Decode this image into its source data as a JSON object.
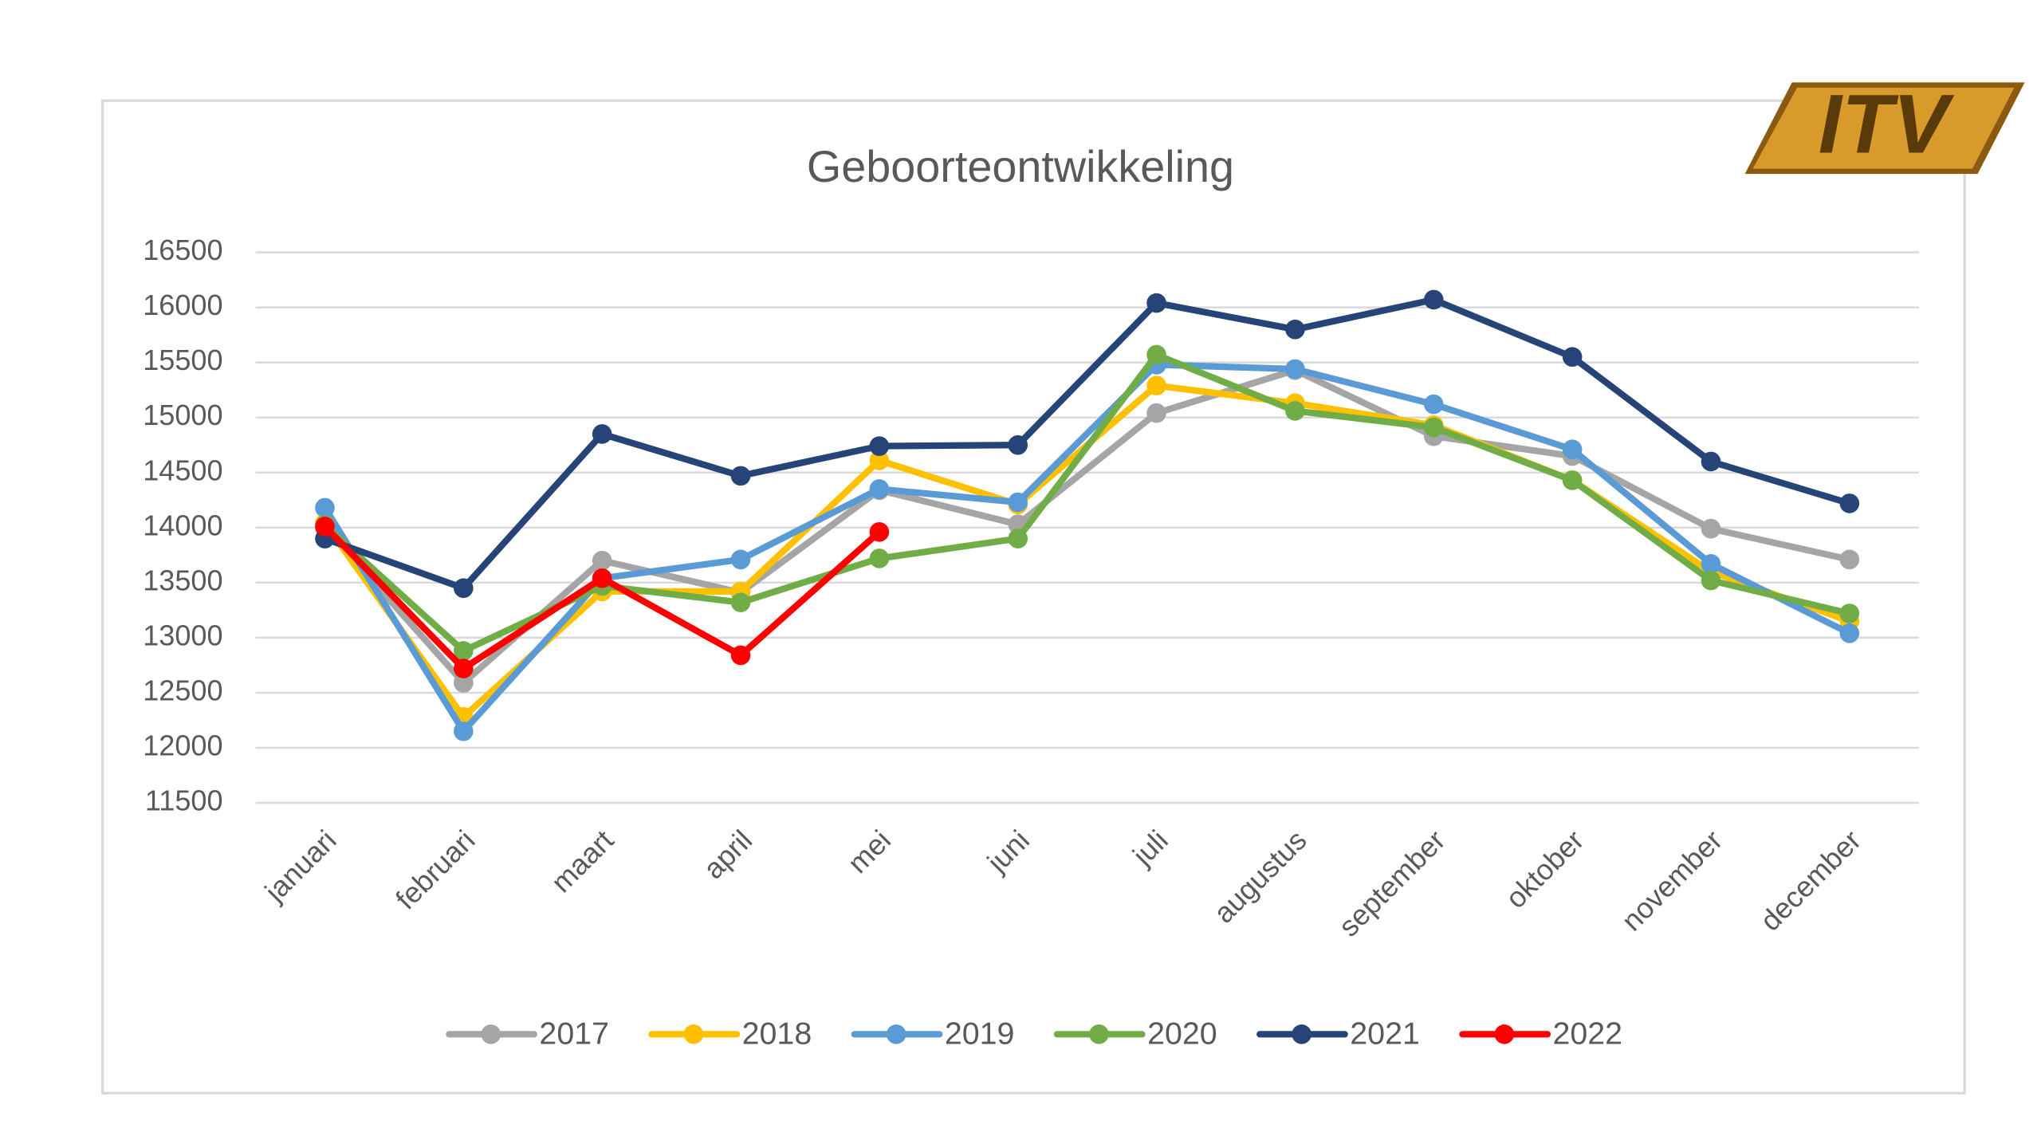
{
  "logo_text": "ITV",
  "chart_data": {
    "type": "line",
    "title": "Geboorteontwikkeling",
    "categories": [
      "januari",
      "februari",
      "maart",
      "april",
      "mei",
      "juni",
      "juli",
      "augustus",
      "september",
      "oktober",
      "november",
      "december"
    ],
    "ylim": [
      11500,
      16500
    ],
    "yticks": [
      11500,
      12000,
      12500,
      13000,
      13500,
      14000,
      14500,
      15000,
      15500,
      16000,
      16500
    ],
    "grid": true,
    "legend": "bottom",
    "series": [
      {
        "name": "2017",
        "color": "#a5a5a5",
        "values": [
          14000,
          12590,
          13700,
          13410,
          14340,
          14030,
          15040,
          15430,
          14830,
          14650,
          13990,
          13710
        ]
      },
      {
        "name": "2018",
        "color": "#ffc000",
        "values": [
          14040,
          12280,
          13420,
          13420,
          14610,
          14210,
          15290,
          15130,
          14930,
          14430,
          13600,
          13150
        ]
      },
      {
        "name": "2019",
        "color": "#5b9bd5",
        "values": [
          14180,
          12150,
          13540,
          13710,
          14350,
          14230,
          15480,
          15440,
          15120,
          14710,
          13670,
          13040
        ]
      },
      {
        "name": "2020",
        "color": "#70ad47",
        "values": [
          14020,
          12880,
          13470,
          13320,
          13720,
          13900,
          15570,
          15060,
          14910,
          14430,
          13520,
          13220
        ]
      },
      {
        "name": "2021",
        "color": "#264478",
        "values": [
          13900,
          13450,
          14850,
          14470,
          14740,
          14750,
          16040,
          15800,
          16070,
          15550,
          14600,
          14220
        ]
      },
      {
        "name": "2022",
        "color": "#ff0000",
        "values": [
          14010,
          12720,
          13540,
          12840,
          13960,
          null,
          null,
          null,
          null,
          null,
          null,
          null
        ]
      }
    ]
  }
}
